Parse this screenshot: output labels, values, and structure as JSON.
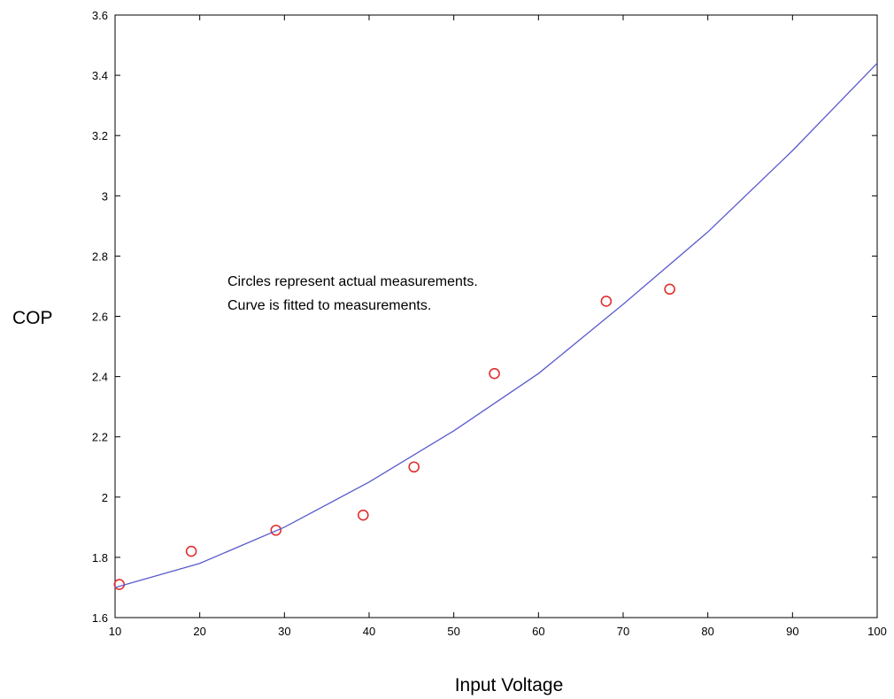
{
  "chart_data": {
    "type": "scatter",
    "xlabel": "Input Voltage",
    "ylabel": "COP",
    "xlim": [
      10,
      100
    ],
    "ylim": [
      1.6,
      3.6
    ],
    "x_ticks": [
      10,
      20,
      30,
      40,
      50,
      60,
      70,
      80,
      90,
      100
    ],
    "y_ticks": [
      1.6,
      1.8,
      2,
      2.2,
      2.4,
      2.6,
      2.8,
      3,
      3.2,
      3.4,
      3.6
    ],
    "grid": false,
    "annotations": [
      "Circles represent actual measurements.",
      "Curve is fitted to measurements."
    ],
    "series": [
      {
        "type": "scatter",
        "marker": "circle",
        "color": "#e03030",
        "x": [
          10.5,
          19,
          29,
          39.3,
          45.3,
          54.8,
          68,
          75.5
        ],
        "y": [
          1.71,
          1.82,
          1.89,
          1.94,
          2.1,
          2.41,
          2.65,
          2.69
        ]
      },
      {
        "type": "line",
        "color": "#5a5acd",
        "x": [
          10,
          20,
          30,
          40,
          50,
          60,
          70,
          80,
          90,
          100
        ],
        "y": [
          1.7,
          1.78,
          1.9,
          2.05,
          2.22,
          2.41,
          2.64,
          2.88,
          3.15,
          3.44
        ]
      }
    ]
  }
}
